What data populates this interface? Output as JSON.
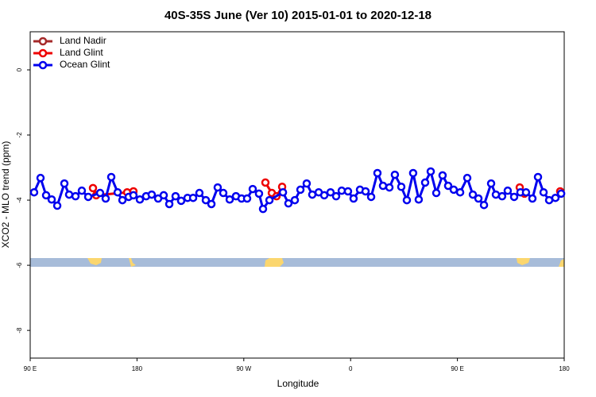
{
  "chart_data": {
    "type": "line",
    "title": "40S-35S June (Ver 10)   2015-01-01 to 2020-12-18",
    "x_label": "Longitude",
    "y_label": "XCO2 - MLO trend (ppm)",
    "xlim": [
      90,
      540
    ],
    "ylim": [
      -8.85,
      1.17
    ],
    "xticks": [
      {
        "value": 90,
        "label": "90 E"
      },
      180,
      {
        "value": 270,
        "label": "90 W"
      },
      {
        "value": 360,
        "label": "0"
      },
      {
        "value": 450,
        "label": "90 E"
      },
      {
        "value": 540,
        "label": "180"
      }
    ],
    "yticks": [
      0,
      -2,
      -4,
      -6,
      -8
    ],
    "legend": "top-left",
    "series": [
      {
        "name": "Land Nadir",
        "color": "#a52a2a",
        "x": [],
        "values": []
      },
      {
        "name": "Land Glint",
        "color": "#ee0000",
        "x": [
          142.9,
          145.6,
          171.7,
          177.0,
          null,
          288.2,
          293.6,
          297.6,
          302.3,
          null,
          502.5,
          506.5,
          null,
          536.6
        ],
        "values": [
          -3.63,
          -3.85,
          -3.76,
          -3.73,
          null,
          -3.46,
          -3.78,
          -3.88,
          -3.59,
          null,
          -3.61,
          -3.8,
          null,
          -3.73
        ]
      },
      {
        "name": "Ocean Glint",
        "color": "#0000ee",
        "x": [
          93.3,
          98.7,
          103.4,
          108.1,
          112.8,
          118.8,
          122.8,
          128.2,
          133.5,
          138.9,
          148.9,
          153.6,
          158.3,
          163.7,
          167.7,
          173.0,
          177.0,
          182.4,
          187.7,
          192.4,
          197.8,
          202.5,
          207.2,
          212.5,
          217.2,
          222.6,
          227.3,
          232.6,
          238.0,
          242.7,
          248.0,
          252.7,
          258.1,
          263.4,
          268.1,
          272.8,
          277.5,
          282.8,
          286.2,
          291.6,
          303.0,
          307.6,
          313.0,
          317.7,
          323.0,
          327.7,
          333.1,
          337.8,
          343.1,
          347.8,
          352.5,
          357.8,
          362.5,
          367.9,
          372.6,
          377.3,
          382.6,
          387.3,
          392.7,
          397.3,
          402.7,
          407.4,
          412.7,
          417.4,
          422.8,
          427.5,
          432.2,
          437.5,
          442.2,
          446.9,
          452.3,
          458.3,
          463.0,
          467.7,
          472.4,
          478.4,
          482.4,
          487.7,
          492.4,
          497.8,
          503.1,
          507.8,
          513.2,
          517.9,
          522.6,
          527.3,
          532.6,
          537.4
        ],
        "values": [
          -3.76,
          -3.32,
          -3.85,
          -3.98,
          -4.17,
          -3.49,
          -3.83,
          -3.88,
          -3.71,
          -3.9,
          -3.78,
          -3.95,
          -3.29,
          -3.76,
          -4.0,
          -3.9,
          -3.85,
          -3.98,
          -3.88,
          -3.83,
          -3.95,
          -3.85,
          -4.12,
          -3.88,
          -4.02,
          -3.93,
          -3.93,
          -3.78,
          -4.0,
          -4.12,
          -3.61,
          -3.78,
          -3.98,
          -3.88,
          -3.95,
          -3.95,
          -3.66,
          -3.8,
          -4.27,
          -4.0,
          -3.76,
          -4.1,
          -4.0,
          -3.68,
          -3.49,
          -3.83,
          -3.76,
          -3.85,
          -3.76,
          -3.88,
          -3.71,
          -3.73,
          -3.95,
          -3.68,
          -3.73,
          -3.9,
          -3.17,
          -3.56,
          -3.61,
          -3.22,
          -3.59,
          -4.0,
          -3.17,
          -3.98,
          -3.46,
          -3.12,
          -3.78,
          -3.24,
          -3.56,
          -3.68,
          -3.76,
          -3.32,
          -3.83,
          -3.95,
          -4.15,
          -3.49,
          -3.83,
          -3.88,
          -3.71,
          -3.9,
          -3.76,
          -3.76,
          -3.95,
          -3.29,
          -3.76,
          -4.0,
          -3.93,
          -3.8
        ]
      }
    ]
  }
}
